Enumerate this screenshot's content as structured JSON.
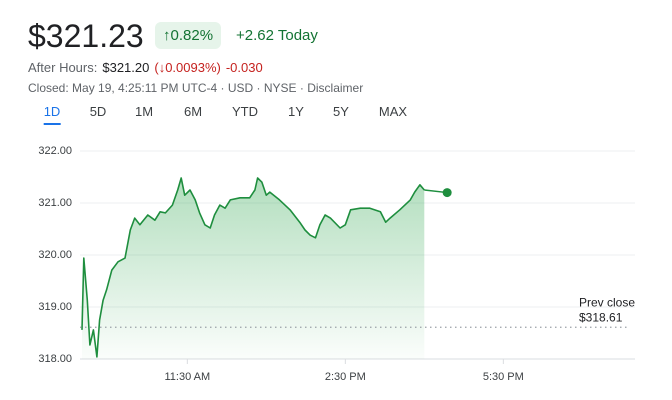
{
  "header": {
    "price": "$321.23",
    "change_pct": "↑0.82%",
    "change_today": "+2.62 Today",
    "after_hours_label": "After Hours:",
    "after_hours_price": "$321.20",
    "after_hours_pct": "(↓0.0093%)",
    "after_hours_change": "-0.030",
    "closed": "Closed: May 19, 4:25:11 PM UTC-4 · USD · NYSE · Disclaimer"
  },
  "tabs": [
    "1D",
    "5D",
    "1M",
    "6M",
    "YTD",
    "1Y",
    "5Y",
    "MAX"
  ],
  "chart_data": {
    "type": "line",
    "x": [
      570,
      572,
      576,
      579,
      583,
      587,
      590,
      594,
      598,
      604,
      611,
      619,
      625,
      630,
      636,
      645,
      653,
      659,
      665,
      673,
      679,
      683,
      687,
      693,
      699,
      704,
      710,
      716,
      721,
      727,
      733,
      739,
      750,
      761,
      767,
      770,
      775,
      780,
      784,
      795,
      807,
      818,
      824,
      830,
      836,
      841,
      847,
      853,
      864,
      870,
      876,
      887,
      898,
      910,
      916,
      921,
      932,
      944,
      949,
      955,
      960
    ],
    "series": [
      {
        "name": "Price",
        "color": "#1e8e3e",
        "values": [
          318.56,
          319.94,
          319.13,
          318.27,
          318.56,
          318.04,
          318.75,
          319.13,
          319.33,
          319.71,
          319.87,
          319.94,
          320.48,
          320.71,
          320.58,
          320.77,
          320.67,
          320.83,
          320.81,
          320.96,
          321.25,
          321.48,
          321.15,
          321.25,
          321.06,
          320.81,
          320.58,
          320.52,
          320.77,
          320.96,
          320.9,
          321.06,
          321.1,
          321.1,
          321.25,
          321.48,
          321.4,
          321.15,
          321.21,
          321.06,
          320.87,
          320.63,
          320.48,
          320.38,
          320.33,
          320.58,
          320.77,
          320.71,
          320.52,
          320.58,
          320.87,
          320.9,
          320.9,
          320.83,
          320.63,
          320.71,
          320.87,
          321.06,
          321.21,
          321.35,
          321.25
        ]
      }
    ],
    "after_hours_point": {
      "x": 986,
      "value": 321.2
    },
    "prev_close": {
      "value": 318.61,
      "label": "$318.61",
      "name": "Prev close"
    },
    "xlim": [
      570,
      1200
    ],
    "xticks": [
      {
        "value": 690,
        "label": "11:30 AM"
      },
      {
        "value": 870,
        "label": "2:30 PM"
      },
      {
        "value": 1050,
        "label": "5:30 PM"
      }
    ],
    "ylim": [
      318,
      322
    ],
    "yticks": [
      {
        "value": 318,
        "label": "318.00"
      },
      {
        "value": 319,
        "label": "319.00"
      },
      {
        "value": 320,
        "label": "320.00"
      },
      {
        "value": 321,
        "label": "321.00"
      },
      {
        "value": 322,
        "label": "322.00"
      }
    ],
    "grid": true
  }
}
